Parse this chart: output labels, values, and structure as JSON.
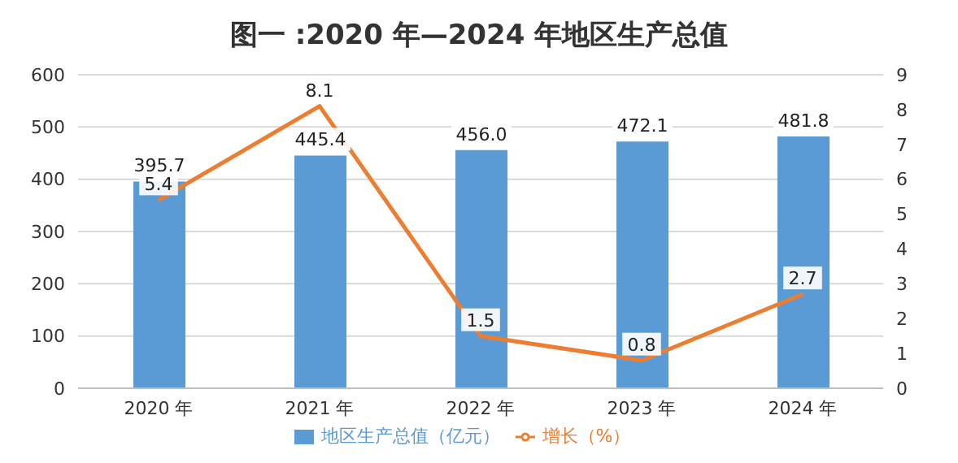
{
  "chart_data": {
    "type": "bar",
    "title": "图一 :2020 年—2024 年地区生产总值",
    "categories": [
      "2020 年",
      "2021 年",
      "2022 年",
      "2023 年",
      "2024 年"
    ],
    "series": [
      {
        "name": "地区生产总值（亿元）",
        "color": "#5b9bd5",
        "values": [
          395.7,
          445.4,
          456.0,
          472.1,
          481.8
        ],
        "value_labels": [
          "395.7",
          "445.4",
          "456.0",
          "472.1",
          "481.8"
        ]
      },
      {
        "name": "增长（%）",
        "type": "line",
        "axis": "y2",
        "color": "#ed7d31",
        "values": [
          5.4,
          8.1,
          1.5,
          0.8,
          2.7
        ],
        "value_labels": [
          "5.4",
          "8.1",
          "1.5",
          "0.8",
          "2.7"
        ]
      }
    ],
    "ylim": [
      0,
      600
    ],
    "yticks": [
      0,
      100,
      200,
      300,
      400,
      500,
      600
    ],
    "y2lim": [
      0,
      9
    ],
    "y2ticks": [
      0,
      1,
      2,
      3,
      4,
      5,
      6,
      7,
      8,
      9
    ],
    "grid": "y",
    "legend": "bottom",
    "marker": "none"
  }
}
